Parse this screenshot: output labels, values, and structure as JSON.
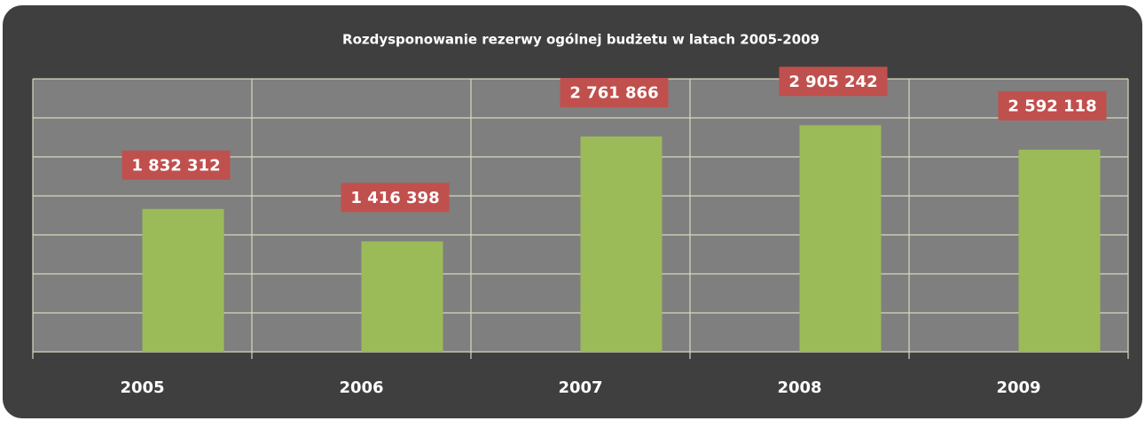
{
  "chart_data": {
    "type": "bar",
    "title": "Rozdysponowanie rezerwy ogólnej budżetu w latach 2005-2009",
    "categories": [
      "2005",
      "2006",
      "2007",
      "2008",
      "2009"
    ],
    "values": [
      1832312,
      1416398,
      2761866,
      2905242,
      2592118
    ],
    "value_labels": [
      "1 832 312",
      "1 416 398",
      "2 761 866",
      "2 905 242",
      "2 592 118"
    ],
    "color": "#9bbb59",
    "label_color": "#c0504d",
    "ylim": [
      0,
      3500000
    ],
    "yticks": [
      0,
      500000,
      1000000,
      1500000,
      2000000,
      2500000,
      3000000,
      3500000
    ],
    "grid": true
  }
}
